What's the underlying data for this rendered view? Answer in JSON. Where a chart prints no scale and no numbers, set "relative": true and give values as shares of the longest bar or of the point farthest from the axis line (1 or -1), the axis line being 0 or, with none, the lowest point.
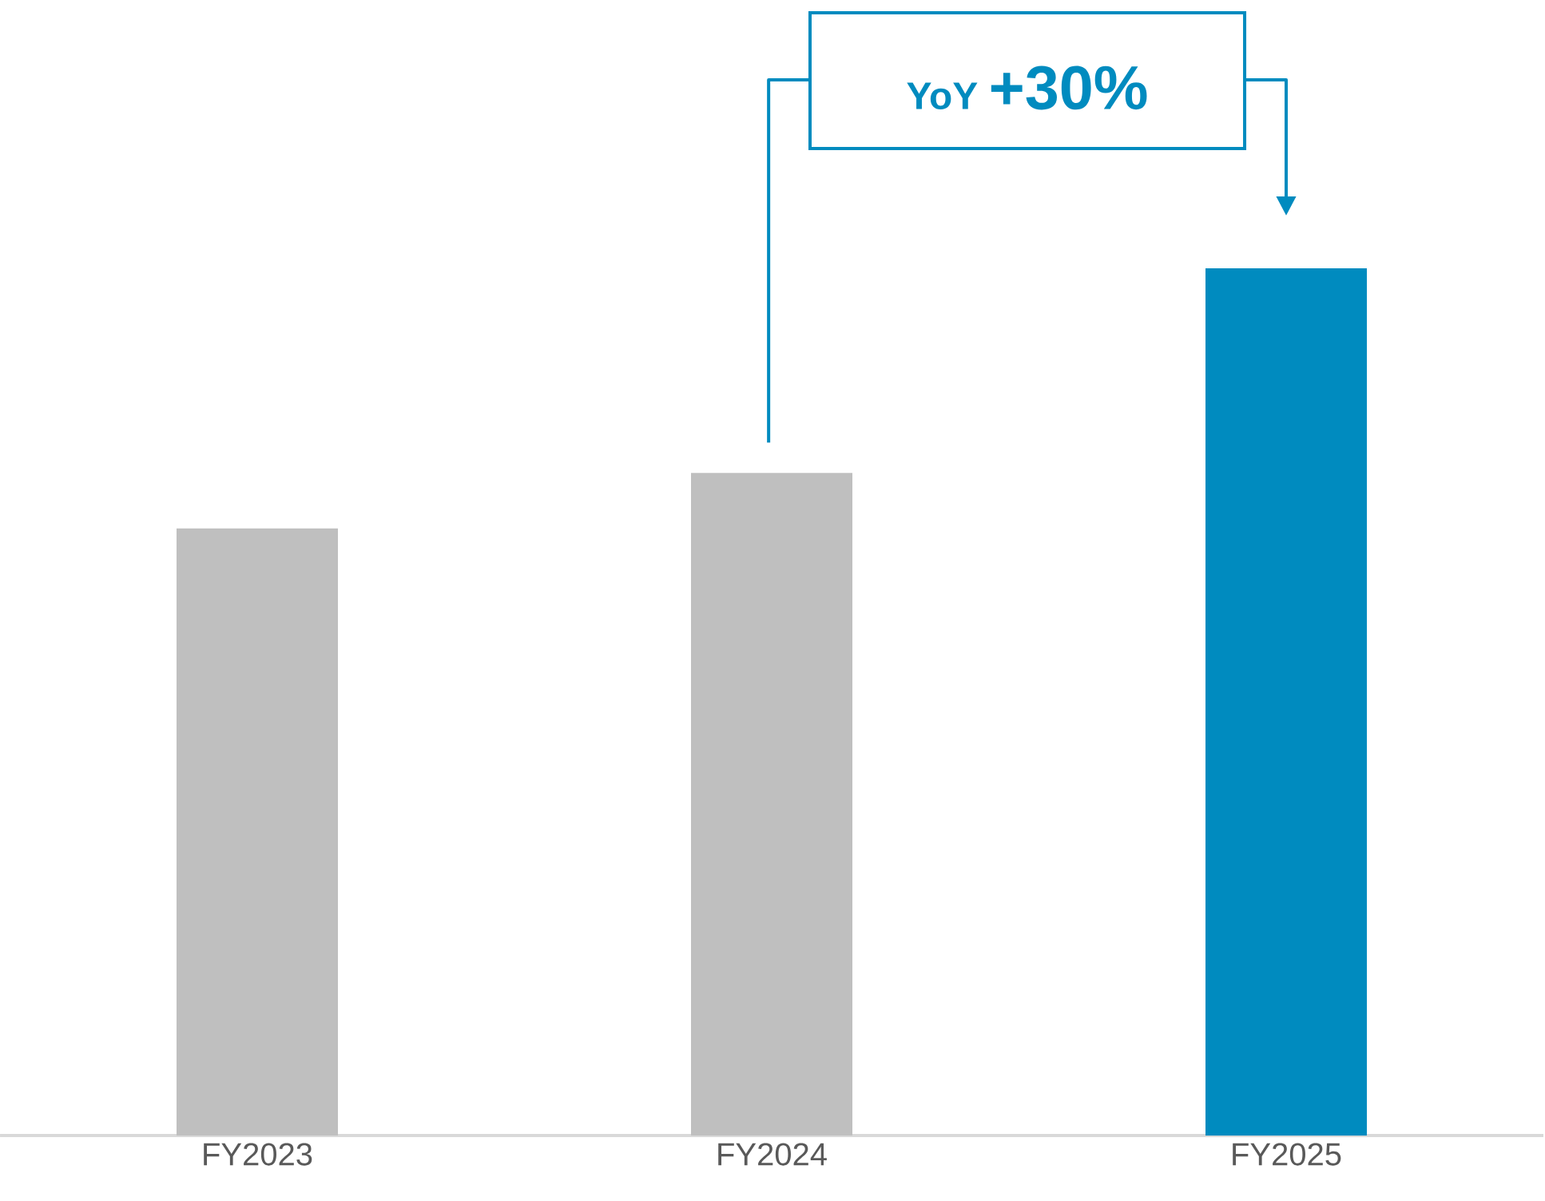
{
  "chart_data": {
    "type": "bar",
    "relative": true,
    "tick_labels": "x",
    "categories": [
      "FY2023",
      "FY2024",
      "FY2025"
    ],
    "values": [
      0.7,
      0.764,
      1
    ],
    "colors": [
      "#bfbfbf",
      "#bfbfbf",
      "#008bbf"
    ],
    "annotations": [
      "YoY",
      "+30%"
    ]
  }
}
